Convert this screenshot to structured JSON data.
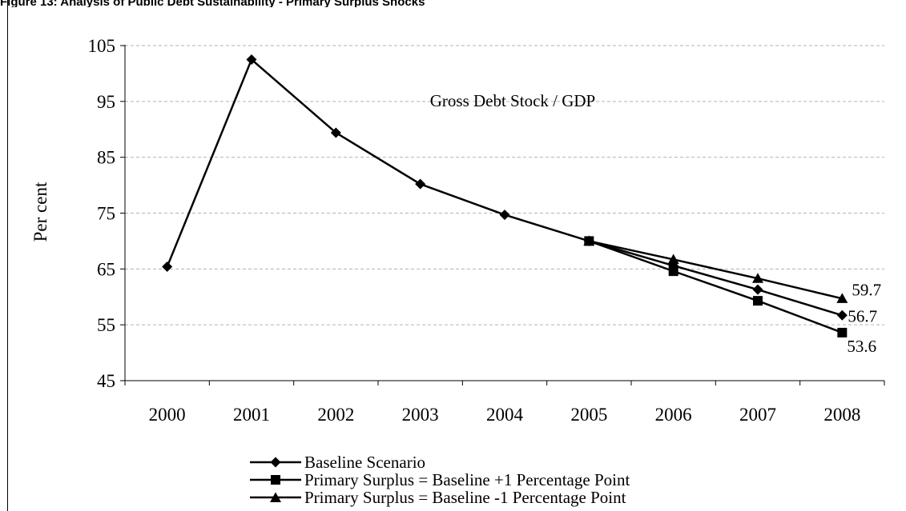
{
  "caption": {
    "text": "Figure 13: Analysis of Public Debt Sustainability - Primary Surplus Shocks"
  },
  "chart_data": {
    "type": "line",
    "title": "Gross Debt Stock / GDP",
    "xlabel": "",
    "ylabel": "Per cent",
    "ylim": [
      45,
      105
    ],
    "yticks": [
      "45",
      "55",
      "65",
      "75",
      "85",
      "95",
      "105"
    ],
    "categories": [
      "2000",
      "2001",
      "2002",
      "2003",
      "2004",
      "2005",
      "2006",
      "2007",
      "2008"
    ],
    "grid": true,
    "legend_position": "bottom",
    "series": [
      {
        "name": "Baseline Scenario",
        "marker": "diamond",
        "values": [
          65.4,
          102.5,
          89.4,
          80.2,
          74.7,
          70.0,
          65.6,
          61.3,
          56.7
        ]
      },
      {
        "name": "Primary Surplus = Baseline +1 Percentage Point",
        "marker": "square",
        "values": [
          null,
          null,
          null,
          null,
          null,
          70.0,
          64.6,
          59.3,
          53.6
        ]
      },
      {
        "name": "Primary Surplus = Baseline -1 Percentage Point",
        "marker": "triangle",
        "values": [
          null,
          null,
          null,
          null,
          null,
          70.0,
          66.7,
          63.3,
          59.7
        ]
      }
    ],
    "end_labels": [
      {
        "series": 2,
        "text": "59.7"
      },
      {
        "series": 0,
        "text": "56.7"
      },
      {
        "series": 1,
        "text": "53.6"
      }
    ]
  }
}
